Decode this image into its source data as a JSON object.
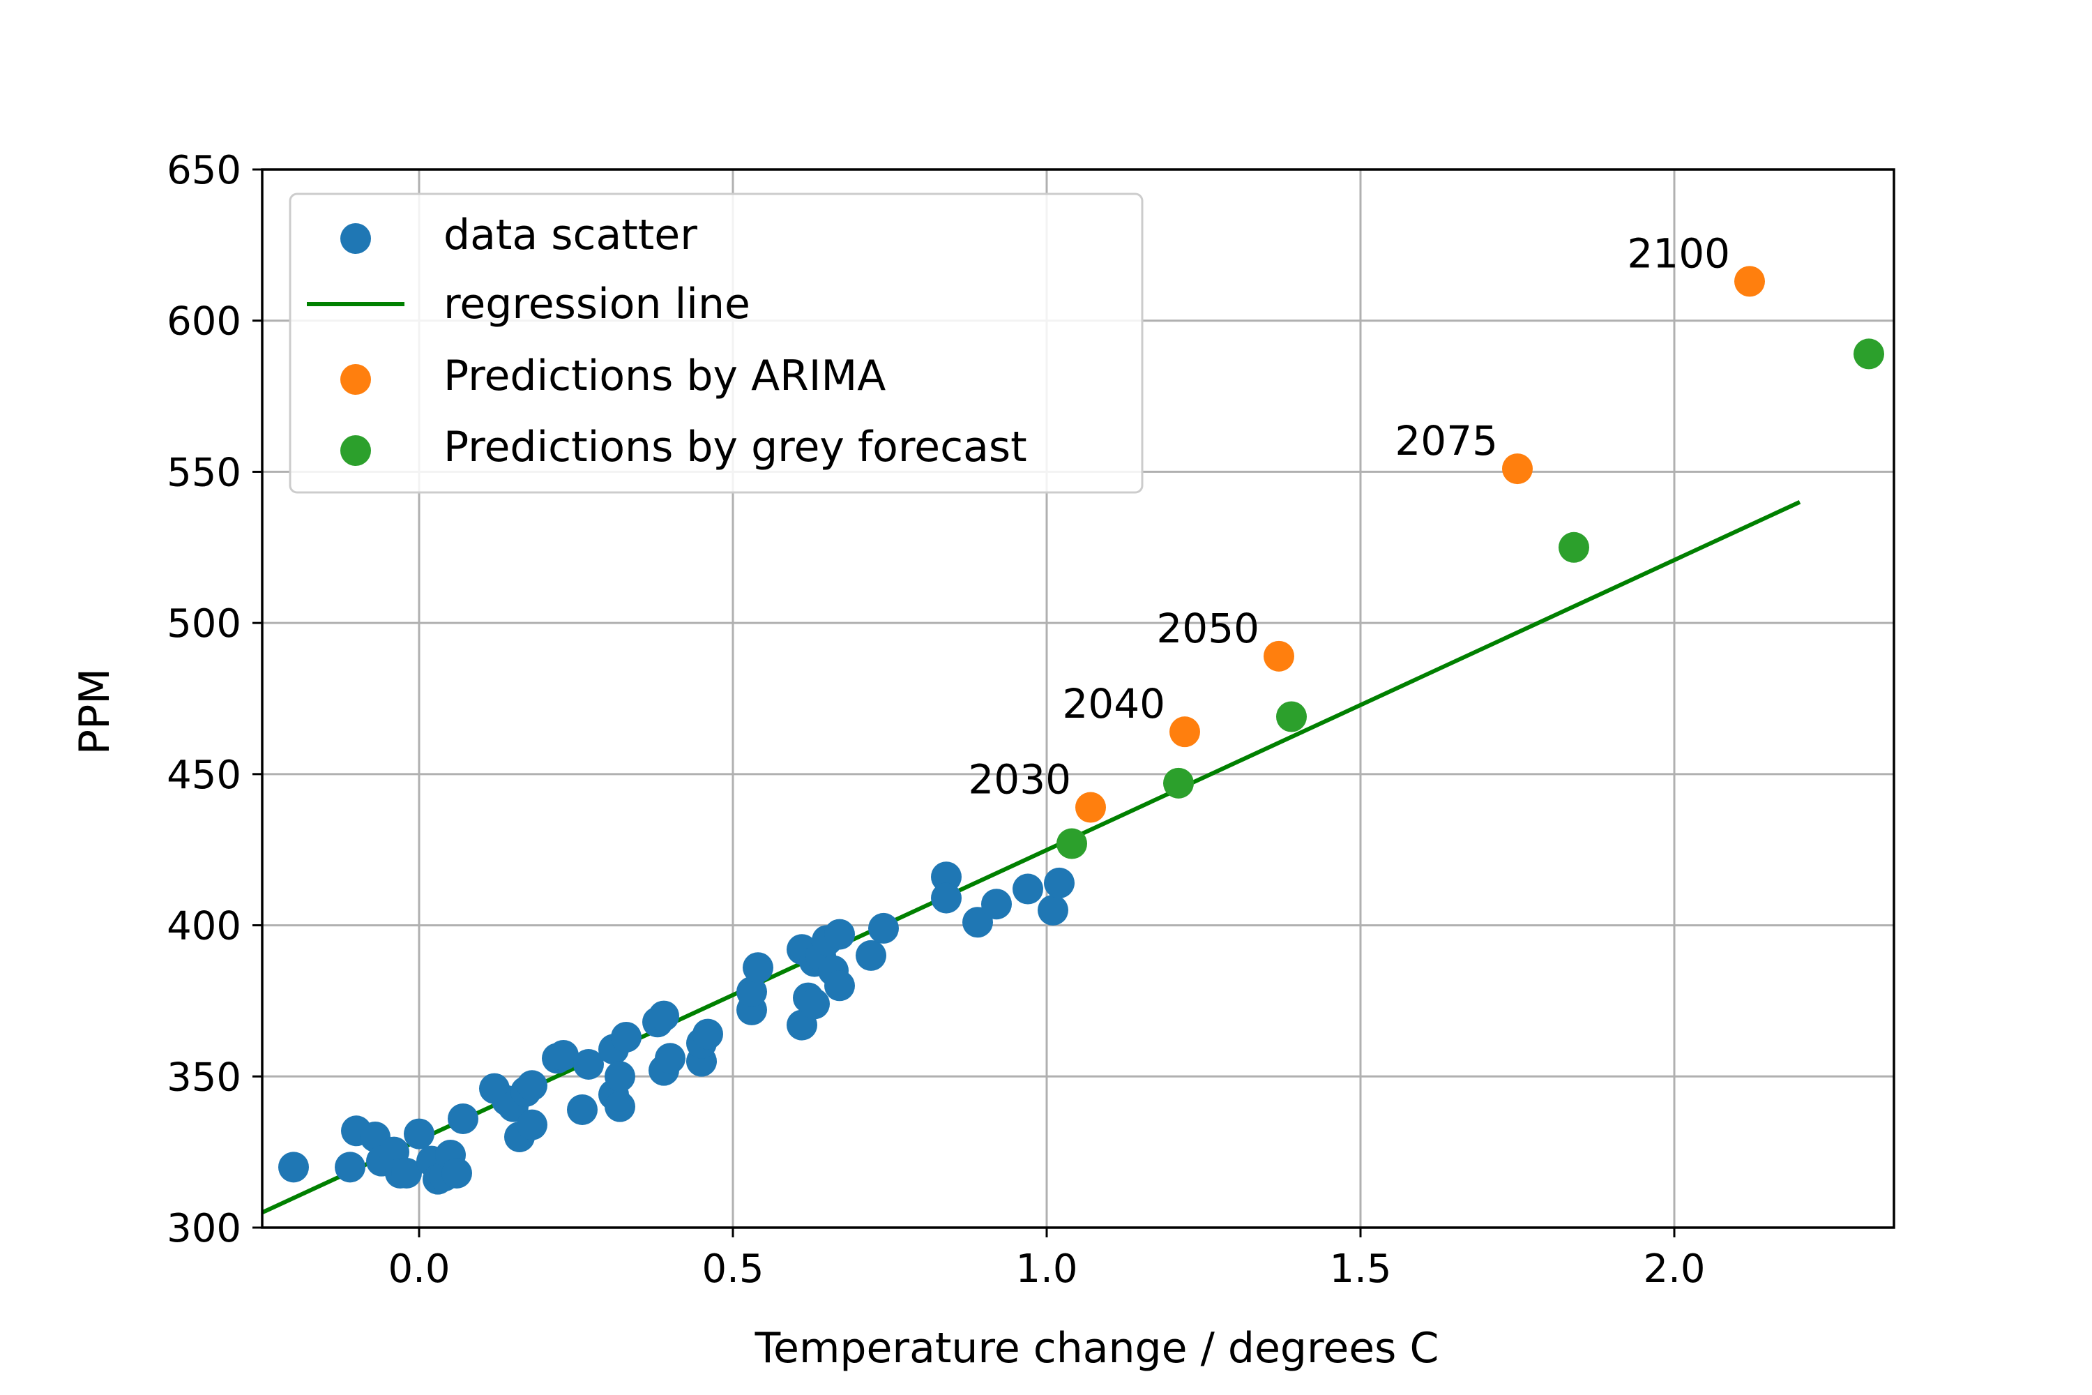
{
  "chart_data": {
    "type": "scatter",
    "title": "",
    "xlabel": "Temperature change / degrees C",
    "ylabel": "PPM",
    "xlim": [
      -0.25,
      2.35
    ],
    "ylim": [
      300,
      650
    ],
    "x_ticks": [
      0.0,
      0.5,
      1.0,
      1.5,
      2.0
    ],
    "x_tick_labels": [
      "0.0",
      "0.5",
      "1.0",
      "1.5",
      "2.0"
    ],
    "y_ticks": [
      300,
      350,
      400,
      450,
      500,
      550,
      600,
      650
    ],
    "y_tick_labels": [
      "300",
      "350",
      "400",
      "450",
      "500",
      "550",
      "600",
      "650"
    ],
    "grid": true,
    "legend_position": "upper-left",
    "series": [
      {
        "name": "data scatter",
        "kind": "scatter",
        "color": "#1f77b4",
        "points": [
          [
            -0.2,
            320
          ],
          [
            -0.11,
            320
          ],
          [
            -0.1,
            332
          ],
          [
            -0.07,
            330
          ],
          [
            -0.06,
            322
          ],
          [
            -0.04,
            325
          ],
          [
            -0.03,
            318
          ],
          [
            -0.02,
            318
          ],
          [
            0.0,
            331
          ],
          [
            0.02,
            322
          ],
          [
            0.03,
            316
          ],
          [
            0.04,
            317
          ],
          [
            0.05,
            324
          ],
          [
            0.06,
            318
          ],
          [
            0.07,
            336
          ],
          [
            0.12,
            346
          ],
          [
            0.14,
            342
          ],
          [
            0.15,
            340
          ],
          [
            0.16,
            330
          ],
          [
            0.17,
            345
          ],
          [
            0.18,
            347
          ],
          [
            0.18,
            334
          ],
          [
            0.22,
            356
          ],
          [
            0.23,
            357
          ],
          [
            0.26,
            339
          ],
          [
            0.27,
            354
          ],
          [
            0.31,
            344
          ],
          [
            0.31,
            359
          ],
          [
            0.32,
            340
          ],
          [
            0.32,
            350
          ],
          [
            0.33,
            363
          ],
          [
            0.38,
            368
          ],
          [
            0.39,
            370
          ],
          [
            0.39,
            352
          ],
          [
            0.4,
            356
          ],
          [
            0.45,
            355
          ],
          [
            0.45,
            361
          ],
          [
            0.46,
            364
          ],
          [
            0.53,
            372
          ],
          [
            0.53,
            378
          ],
          [
            0.54,
            386
          ],
          [
            0.61,
            392
          ],
          [
            0.61,
            367
          ],
          [
            0.62,
            376
          ],
          [
            0.63,
            374
          ],
          [
            0.63,
            388
          ],
          [
            0.64,
            390
          ],
          [
            0.65,
            395
          ],
          [
            0.66,
            385
          ],
          [
            0.67,
            397
          ],
          [
            0.67,
            380
          ],
          [
            0.72,
            390
          ],
          [
            0.74,
            399
          ],
          [
            0.84,
            416
          ],
          [
            0.84,
            409
          ],
          [
            0.89,
            401
          ],
          [
            0.92,
            407
          ],
          [
            0.97,
            412
          ],
          [
            1.01,
            405
          ],
          [
            1.02,
            414
          ]
        ]
      },
      {
        "name": "regression line",
        "kind": "line",
        "color": "#008000",
        "points": [
          [
            -0.25,
            305
          ],
          [
            2.2,
            540
          ]
        ]
      },
      {
        "name": "Predictions by ARIMA",
        "kind": "scatter",
        "color": "#ff7f0e",
        "points": [
          [
            1.07,
            439
          ],
          [
            1.22,
            464
          ],
          [
            1.37,
            489
          ],
          [
            1.75,
            551
          ],
          [
            2.12,
            613
          ]
        ]
      },
      {
        "name": "Predictions by grey forecast",
        "kind": "scatter",
        "color": "#2ca02c",
        "points": [
          [
            1.04,
            427
          ],
          [
            1.21,
            447
          ],
          [
            1.39,
            469
          ],
          [
            1.84,
            525
          ],
          [
            2.31,
            589
          ]
        ]
      }
    ],
    "annotations": [
      {
        "text": "2030",
        "x": 1.07,
        "y": 439
      },
      {
        "text": "2040",
        "x": 1.22,
        "y": 464
      },
      {
        "text": "2050",
        "x": 1.37,
        "y": 489
      },
      {
        "text": "2075",
        "x": 1.75,
        "y": 551
      },
      {
        "text": "2100",
        "x": 2.12,
        "y": 613
      }
    ]
  }
}
